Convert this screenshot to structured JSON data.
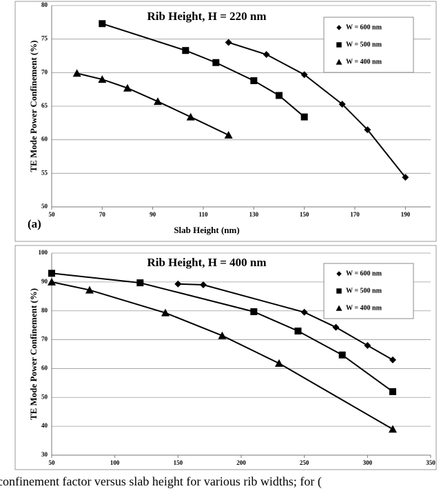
{
  "caption": "confinement factor versus slab height for various rib widths; for (",
  "chart_data": [
    {
      "type": "line",
      "title": "Rib Height, H = 220 nm",
      "panel_label": "(a)",
      "x_label": "Slab Height (nm)",
      "y_label": "TE Mode Power Confinement (%)",
      "xlim": [
        50,
        200
      ],
      "xticks": [
        50,
        70,
        90,
        110,
        130,
        150,
        170,
        190
      ],
      "ylim": [
        50,
        80
      ],
      "yticks": [
        50,
        55,
        60,
        65,
        70,
        75,
        80
      ],
      "grid": true,
      "legend": "top-right",
      "series": [
        {
          "name": "W = 600 nm",
          "marker": "diamond",
          "color": "#000000",
          "x": [
            120,
            135,
            150,
            165,
            175,
            190
          ],
          "values": [
            74.5,
            72.7,
            69.7,
            65.3,
            61.5,
            54.4
          ]
        },
        {
          "name": "W = 500 nm",
          "marker": "square",
          "color": "#000000",
          "x": [
            70,
            103,
            115,
            130,
            140,
            150
          ],
          "values": [
            77.3,
            73.3,
            71.5,
            68.8,
            66.6,
            63.4
          ]
        },
        {
          "name": "W = 400 nm",
          "marker": "triangle",
          "color": "#000000",
          "x": [
            60,
            70,
            80,
            92,
            105,
            120
          ],
          "values": [
            69.9,
            69,
            67.7,
            65.7,
            63.4,
            60.7
          ]
        }
      ]
    },
    {
      "type": "line",
      "title": "Rib Height, H = 400 nm",
      "y_label": "TE Mode Power Confinement (%)",
      "xlim": [
        50,
        350
      ],
      "xticks": [
        50,
        100,
        150,
        200,
        250,
        300,
        350
      ],
      "ylim": [
        30,
        100
      ],
      "yticks": [
        30,
        40,
        50,
        60,
        70,
        80,
        90,
        100
      ],
      "grid": true,
      "legend": "top-right",
      "series": [
        {
          "name": "W = 600 nm",
          "marker": "diamond",
          "color": "#000000",
          "x": [
            150,
            170,
            250,
            275,
            300,
            320
          ],
          "values": [
            89.3,
            89,
            79.5,
            74.3,
            68,
            63
          ]
        },
        {
          "name": "W = 500 nm",
          "marker": "square",
          "color": "#000000",
          "x": [
            50,
            120,
            210,
            245,
            280,
            320
          ],
          "values": [
            93,
            89.7,
            79.7,
            73,
            64.7,
            52
          ]
        },
        {
          "name": "W = 400 nm",
          "marker": "triangle",
          "color": "#000000",
          "x": [
            50,
            80,
            140,
            185,
            230,
            320
          ],
          "values": [
            90,
            87.2,
            79.3,
            71.4,
            61.8,
            39
          ]
        }
      ]
    }
  ]
}
